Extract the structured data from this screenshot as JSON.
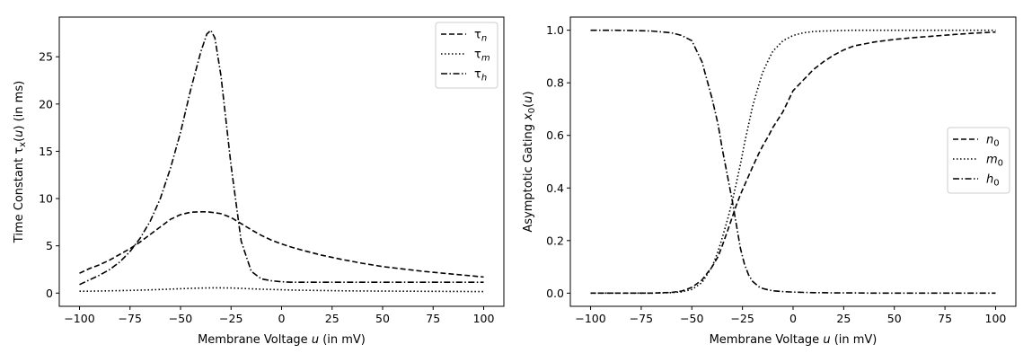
{
  "figure": {
    "background": "#ffffff",
    "line_color": "#000000"
  },
  "chart_data": [
    {
      "type": "line",
      "xlabel": "Membrane Voltage u (in mV)",
      "ylabel": "Time Constant τx(u) (in ms)",
      "xlim": [
        -110,
        110
      ],
      "ylim": [
        -1.4,
        29.2
      ],
      "xticks": [
        -100,
        -75,
        -50,
        -25,
        0,
        25,
        50,
        75,
        100
      ],
      "yticks": [
        0,
        5,
        10,
        15,
        20,
        25
      ],
      "grid": false,
      "legend_position": "top-right",
      "x": [
        -100,
        -95,
        -90,
        -85,
        -80,
        -75,
        -70,
        -65,
        -60,
        -55,
        -50,
        -45,
        -40,
        -37,
        -35,
        -33,
        -30,
        -25,
        -20,
        -15,
        -10,
        -5,
        0,
        5,
        10,
        20,
        30,
        40,
        50,
        60,
        70,
        80,
        90,
        100
      ],
      "series": [
        {
          "name": "τn",
          "legend_sub": "n",
          "style": "dashed",
          "values": [
            2.1,
            2.6,
            3.0,
            3.5,
            4.1,
            4.7,
            5.4,
            6.2,
            7.0,
            7.8,
            8.3,
            8.55,
            8.6,
            8.6,
            8.55,
            8.5,
            8.4,
            8.0,
            7.35,
            6.7,
            6.1,
            5.6,
            5.2,
            4.85,
            4.55,
            4.0,
            3.55,
            3.15,
            2.8,
            2.55,
            2.3,
            2.1,
            1.9,
            1.7
          ]
        },
        {
          "name": "τm",
          "legend_sub": "m",
          "style": "dotted",
          "values": [
            0.2,
            0.2,
            0.22,
            0.24,
            0.26,
            0.28,
            0.31,
            0.34,
            0.38,
            0.42,
            0.46,
            0.5,
            0.53,
            0.54,
            0.55,
            0.55,
            0.55,
            0.54,
            0.5,
            0.45,
            0.41,
            0.38,
            0.35,
            0.32,
            0.3,
            0.27,
            0.24,
            0.22,
            0.21,
            0.2,
            0.19,
            0.18,
            0.17,
            0.16
          ]
        },
        {
          "name": "τh",
          "legend_sub": "h",
          "style": "dashdot",
          "values": [
            0.9,
            1.4,
            1.9,
            2.5,
            3.3,
            4.4,
            5.8,
            7.6,
            10.0,
            13.2,
            17.0,
            21.5,
            25.5,
            27.4,
            27.8,
            27.0,
            23.0,
            13.5,
            5.5,
            2.3,
            1.5,
            1.3,
            1.2,
            1.15,
            1.15,
            1.15,
            1.15,
            1.15,
            1.15,
            1.15,
            1.15,
            1.15,
            1.15,
            1.15
          ]
        }
      ]
    },
    {
      "type": "line",
      "xlabel": "Membrane Voltage u (in mV)",
      "ylabel": "Asymptotic Gating x0(u)",
      "xlim": [
        -110,
        110
      ],
      "ylim": [
        -0.05,
        1.05
      ],
      "xticks": [
        -100,
        -75,
        -50,
        -25,
        0,
        25,
        50,
        75,
        100
      ],
      "yticks": [
        0.0,
        0.2,
        0.4,
        0.6,
        0.8,
        1.0
      ],
      "grid": false,
      "legend_position": "center-right",
      "x": [
        -100,
        -90,
        -80,
        -70,
        -60,
        -55,
        -50,
        -45,
        -40,
        -37,
        -35,
        -32,
        -30,
        -28,
        -26,
        -24,
        -22,
        -20,
        -17,
        -15,
        -12,
        -10,
        -5,
        0,
        5,
        10,
        15,
        20,
        25,
        30,
        40,
        50,
        60,
        70,
        80,
        90,
        100
      ],
      "series": [
        {
          "name": "n0",
          "legend_sub": "0",
          "style": "dashed",
          "values": [
            0.0,
            0.0,
            0.0,
            0.0,
            0.003,
            0.008,
            0.022,
            0.05,
            0.1,
            0.14,
            0.18,
            0.245,
            0.29,
            0.335,
            0.375,
            0.41,
            0.445,
            0.48,
            0.53,
            0.56,
            0.6,
            0.63,
            0.69,
            0.77,
            0.81,
            0.85,
            0.88,
            0.905,
            0.925,
            0.94,
            0.955,
            0.965,
            0.972,
            0.978,
            0.984,
            0.989,
            0.993
          ]
        },
        {
          "name": "m0",
          "legend_sub": "0",
          "style": "dotted",
          "values": [
            0.0,
            0.0,
            0.0,
            0.0,
            0.002,
            0.005,
            0.014,
            0.04,
            0.1,
            0.16,
            0.21,
            0.29,
            0.35,
            0.42,
            0.49,
            0.57,
            0.64,
            0.71,
            0.79,
            0.84,
            0.89,
            0.92,
            0.96,
            0.98,
            0.99,
            0.995,
            0.997,
            0.998,
            0.999,
            1.0,
            1.0,
            1.0,
            1.0,
            1.0,
            1.0,
            1.0,
            1.0
          ]
        },
        {
          "name": "h0",
          "legend_sub": "0",
          "style": "dashdot",
          "values": [
            1.0,
            1.0,
            0.999,
            0.997,
            0.99,
            0.98,
            0.96,
            0.88,
            0.74,
            0.64,
            0.55,
            0.43,
            0.35,
            0.26,
            0.17,
            0.11,
            0.07,
            0.045,
            0.025,
            0.018,
            0.012,
            0.009,
            0.006,
            0.004,
            0.003,
            0.002,
            0.002,
            0.001,
            0.001,
            0.001,
            0.0,
            0.0,
            0.0,
            0.0,
            0.0,
            0.0,
            0.0
          ]
        }
      ]
    }
  ]
}
